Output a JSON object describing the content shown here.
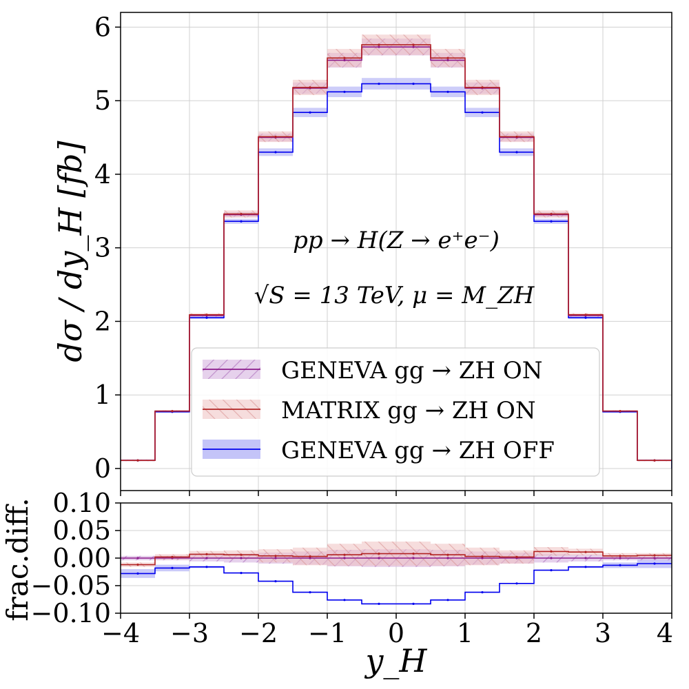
{
  "chart_data": [
    {
      "type": "line",
      "panel": "main",
      "ylabel": "dσ / dy_H    [fb]",
      "ylim": [
        -0.3,
        6.2
      ],
      "yticks": [
        "0",
        "1",
        "2",
        "3",
        "4",
        "5",
        "6"
      ],
      "xlim": [
        -4,
        4
      ],
      "grid": true,
      "bin_edges": [
        -4,
        -3.5,
        -3,
        -2.5,
        -2,
        -1.5,
        -1,
        -0.5,
        0,
        0.5,
        1,
        1.5,
        2,
        2.5,
        3,
        3.5,
        4
      ],
      "annotations": [
        "pp → H(Z → e⁺e⁻)",
        "√S = 13 TeV,  μ = M_ZH"
      ],
      "legend_position": "lower-center",
      "series": [
        {
          "name": "GENEVA gg → ZH ON",
          "color": "#8b1a8b",
          "band_color": "#c9a0d6",
          "values": [
            0.11,
            0.78,
            2.08,
            3.45,
            4.5,
            5.17,
            5.55,
            5.73,
            5.73,
            5.55,
            5.17,
            4.5,
            3.45,
            2.08,
            0.78,
            0.11
          ],
          "band_rel": [
            0.004,
            0.006,
            0.008,
            0.01,
            0.012,
            0.015,
            0.018,
            0.02,
            0.02,
            0.018,
            0.015,
            0.012,
            0.01,
            0.008,
            0.006,
            0.004
          ]
        },
        {
          "name": "MATRIX gg → ZH ON",
          "color": "#b22222",
          "band_color": "#e2a8a8",
          "values": [
            0.11,
            0.78,
            2.09,
            3.46,
            4.51,
            5.18,
            5.58,
            5.76,
            5.76,
            5.58,
            5.18,
            4.51,
            3.46,
            2.09,
            0.78,
            0.11
          ],
          "band_rel": [
            0.006,
            0.008,
            0.01,
            0.014,
            0.016,
            0.02,
            0.022,
            0.024,
            0.024,
            0.022,
            0.02,
            0.016,
            0.014,
            0.01,
            0.008,
            0.006
          ]
        },
        {
          "name": "GENEVA gg → ZH OFF",
          "color": "#0000ee",
          "band_color": "#c4c4f8",
          "values": [
            0.11,
            0.77,
            2.05,
            3.36,
            4.3,
            4.84,
            5.12,
            5.23,
            5.23,
            5.12,
            4.84,
            4.3,
            3.36,
            2.05,
            0.77,
            0.11
          ],
          "band_rel": [
            0.004,
            0.006,
            0.008,
            0.01,
            0.012,
            0.013,
            0.014,
            0.015,
            0.015,
            0.014,
            0.013,
            0.012,
            0.01,
            0.008,
            0.006,
            0.004
          ]
        }
      ]
    },
    {
      "type": "line",
      "panel": "ratio",
      "xlabel": "y_H",
      "ylabel": "frac.diff.",
      "ylim": [
        -0.1,
        0.1
      ],
      "yticks": [
        "0.10",
        "0.05",
        "0.00",
        "−0.05",
        "−0.10"
      ],
      "xlim": [
        -4,
        4
      ],
      "xticks": [
        "−4",
        "−3",
        "−2",
        "−1",
        "0",
        "1",
        "2",
        "3",
        "4"
      ],
      "grid": true,
      "bin_edges": [
        -4,
        -3.5,
        -3,
        -2.5,
        -2,
        -1.5,
        -1,
        -0.5,
        0,
        0.5,
        1,
        1.5,
        2,
        2.5,
        3,
        3.5,
        4
      ],
      "series": [
        {
          "name": "GENEVA gg → ZH ON",
          "values": [
            0.0,
            0.0,
            0.0,
            0.0,
            0.0,
            0.0,
            0.0,
            0.0,
            0.0,
            0.0,
            0.0,
            0.0,
            0.0,
            0.0,
            0.0,
            0.0
          ],
          "band_halfwidth": [
            0.004,
            0.004,
            0.006,
            0.008,
            0.01,
            0.012,
            0.015,
            0.016,
            0.016,
            0.015,
            0.012,
            0.01,
            0.008,
            0.006,
            0.004,
            0.004
          ]
        },
        {
          "name": "MATRIX gg → ZH ON",
          "values": [
            -0.012,
            0.002,
            0.007,
            0.006,
            0.004,
            0.003,
            0.006,
            0.008,
            0.008,
            0.006,
            0.003,
            0.002,
            0.012,
            0.011,
            0.004,
            0.005
          ],
          "band_halfwidth": [
            0.004,
            0.005,
            0.006,
            0.008,
            0.012,
            0.016,
            0.02,
            0.022,
            0.022,
            0.02,
            0.016,
            0.012,
            0.008,
            0.006,
            0.005,
            0.004
          ]
        },
        {
          "name": "GENEVA gg → ZH OFF",
          "values": [
            -0.028,
            -0.018,
            -0.016,
            -0.027,
            -0.042,
            -0.062,
            -0.076,
            -0.083,
            -0.083,
            -0.076,
            -0.062,
            -0.046,
            -0.022,
            -0.016,
            -0.013,
            -0.01
          ],
          "band_halfwidth": [
            0.008,
            0.006,
            0.002,
            0.001,
            0.001,
            0.001,
            0.001,
            0.001,
            0.001,
            0.001,
            0.001,
            0.001,
            0.001,
            0.002,
            0.005,
            0.008
          ]
        }
      ]
    }
  ]
}
